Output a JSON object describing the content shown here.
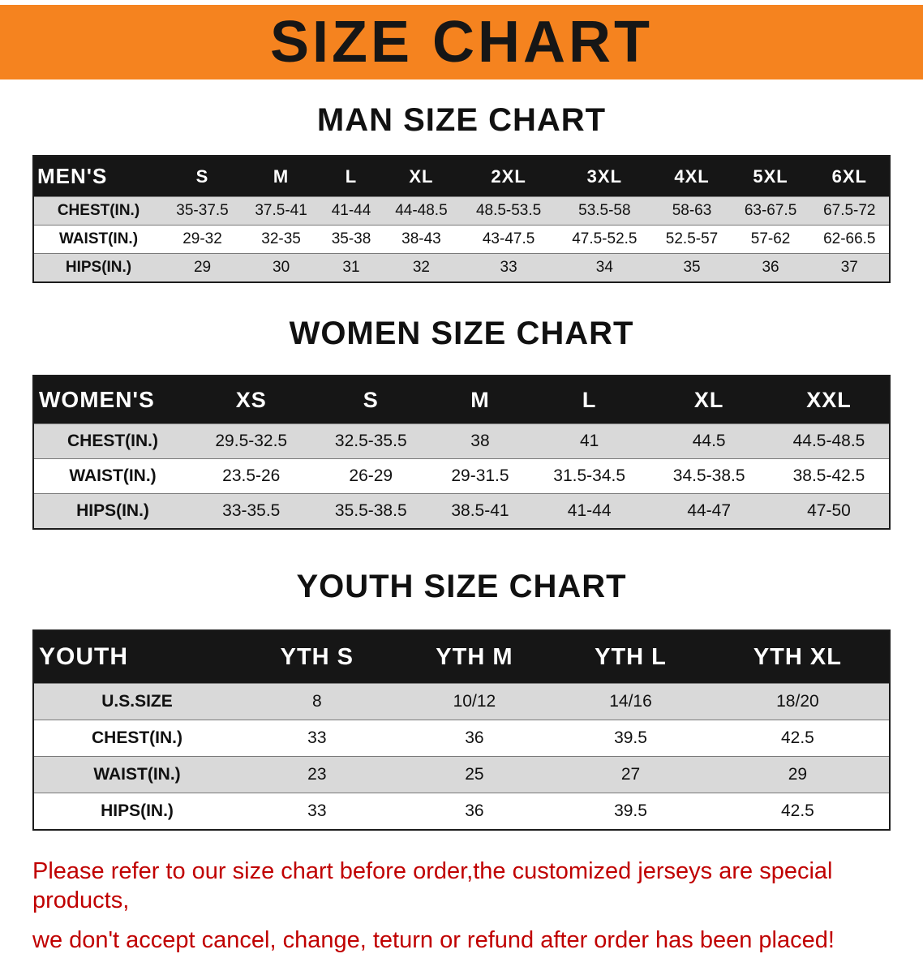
{
  "colors": {
    "banner_bg": "#F5831F",
    "table_header_bg": "#161616",
    "row_alt_bg": "#D9D9D9",
    "notice_text": "#C00000"
  },
  "banner": {
    "title": "SIZE CHART"
  },
  "sections": [
    {
      "id": "men",
      "heading": "MAN SIZE CHART",
      "table": {
        "header": [
          "MEN'S",
          "S",
          "M",
          "L",
          "XL",
          "2XL",
          "3XL",
          "4XL",
          "5XL",
          "6XL"
        ],
        "rows": [
          [
            "CHEST(IN.)",
            "35-37.5",
            "37.5-41",
            "41-44",
            "44-48.5",
            "48.5-53.5",
            "53.5-58",
            "58-63",
            "63-67.5",
            "67.5-72"
          ],
          [
            "WAIST(IN.)",
            "29-32",
            "32-35",
            "35-38",
            "38-43",
            "43-47.5",
            "47.5-52.5",
            "52.5-57",
            "57-62",
            "62-66.5"
          ],
          [
            "HIPS(IN.)",
            "29",
            "30",
            "31",
            "32",
            "33",
            "34",
            "35",
            "36",
            "37"
          ]
        ]
      }
    },
    {
      "id": "women",
      "heading": "WOMEN SIZE CHART",
      "table": {
        "header": [
          "WOMEN'S",
          "XS",
          "S",
          "M",
          "L",
          "XL",
          "XXL"
        ],
        "rows": [
          [
            "CHEST(IN.)",
            "29.5-32.5",
            "32.5-35.5",
            "38",
            "41",
            "44.5",
            "44.5-48.5"
          ],
          [
            "WAIST(IN.)",
            "23.5-26",
            "26-29",
            "29-31.5",
            "31.5-34.5",
            "34.5-38.5",
            "38.5-42.5"
          ],
          [
            "HIPS(IN.)",
            "33-35.5",
            "35.5-38.5",
            "38.5-41",
            "41-44",
            "44-47",
            "47-50"
          ]
        ]
      }
    },
    {
      "id": "youth",
      "heading": "YOUTH SIZE CHART",
      "table": {
        "header": [
          "YOUTH",
          "YTH S",
          "YTH M",
          "YTH L",
          "YTH XL"
        ],
        "rows": [
          [
            "U.S.SIZE",
            "8",
            "10/12",
            "14/16",
            "18/20"
          ],
          [
            "CHEST(IN.)",
            "33",
            "36",
            "39.5",
            "42.5"
          ],
          [
            "WAIST(IN.)",
            "23",
            "25",
            "27",
            "29"
          ],
          [
            "HIPS(IN.)",
            "33",
            "36",
            "39.5",
            "42.5"
          ]
        ]
      }
    }
  ],
  "notice": {
    "line1": "Please refer to our size chart before order,the customized jerseys are special products,",
    "line2": "we don't accept cancel, change, teturn or refund after order has been placed!"
  }
}
